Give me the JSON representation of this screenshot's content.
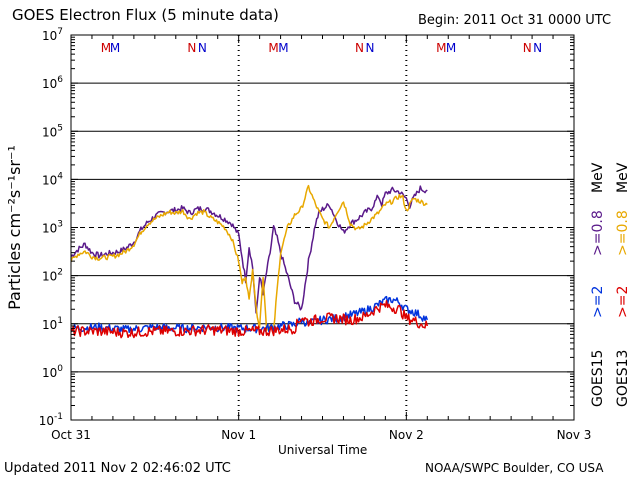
{
  "header": {
    "title": "GOES Electron Flux (5 minute data)",
    "begin": "Begin: 2011 Oct 31 0000 UTC"
  },
  "footer": {
    "updated": "Updated 2011 Nov  2 02:46:02 UTC",
    "credit": "NOAA/SWPC Boulder, CO USA"
  },
  "chart_data": {
    "type": "line",
    "title": "GOES Electron Flux (5 minute data)",
    "xlabel": "Universal Time",
    "ylabel": "Particles cm⁻²s⁻¹sr⁻¹",
    "y_scale": "log",
    "ylim": [
      0.1,
      10000000
    ],
    "y_ticks": [
      {
        "base": "10",
        "exp": "7"
      },
      {
        "base": "10",
        "exp": "6"
      },
      {
        "base": "10",
        "exp": "5"
      },
      {
        "base": "10",
        "exp": "4"
      },
      {
        "base": "10",
        "exp": "3"
      },
      {
        "base": "10",
        "exp": "2"
      },
      {
        "base": "10",
        "exp": "1"
      },
      {
        "base": "10",
        "exp": "0"
      },
      {
        "base": "10",
        "exp": "-1"
      }
    ],
    "xlim_hours": [
      0,
      72
    ],
    "x_ticks": [
      {
        "label": "Oct 31",
        "hour": 0
      },
      {
        "label": "Nov 1",
        "hour": 24
      },
      {
        "label": "Nov 2",
        "hour": 48
      },
      {
        "label": "Nov 3",
        "hour": 72
      }
    ],
    "threshold": 1000,
    "markers": [
      {
        "label": "M",
        "hour": 5.0,
        "color": "#cc0000"
      },
      {
        "label": "M",
        "hour": 6.3,
        "color": "#0000cc"
      },
      {
        "label": "N",
        "hour": 17.3,
        "color": "#cc0000"
      },
      {
        "label": "N",
        "hour": 18.8,
        "color": "#0000cc"
      },
      {
        "label": "M",
        "hour": 29.0,
        "color": "#cc0000"
      },
      {
        "label": "M",
        "hour": 30.4,
        "color": "#0000cc"
      },
      {
        "label": "N",
        "hour": 41.3,
        "color": "#cc0000"
      },
      {
        "label": "N",
        "hour": 42.8,
        "color": "#0000cc"
      },
      {
        "label": "M",
        "hour": 53.0,
        "color": "#cc0000"
      },
      {
        "label": "M",
        "hour": 54.4,
        "color": "#0000cc"
      },
      {
        "label": "N",
        "hour": 65.3,
        "color": "#cc0000"
      },
      {
        "label": "N",
        "hour": 66.8,
        "color": "#0000cc"
      }
    ],
    "legend": {
      "upper": [
        {
          "text": "GOES15 >=0.8 MeV",
          "color": "#5a1a8a"
        },
        {
          "text": "GOES13 >=0.8 MeV",
          "color": "#e8a800"
        }
      ],
      "lower": [
        {
          "text": "GOES15 >=2 MeV",
          "color": "#0033dd"
        },
        {
          "text": "GOES13 >=2 MeV",
          "color": "#dd0000"
        }
      ]
    },
    "series": [
      {
        "name": "GOES15 >=0.8 MeV",
        "color": "#5a1a8a",
        "noise": 0.06,
        "x": [
          0,
          1,
          2,
          3,
          4,
          5,
          6,
          7,
          8,
          9,
          10,
          11,
          12,
          13,
          14,
          15,
          16,
          17,
          18,
          19,
          20,
          21,
          22,
          23,
          24,
          25,
          25.5,
          26,
          26.5,
          27,
          27.5,
          28,
          28.5,
          29,
          29.5,
          30,
          31,
          32,
          33,
          34,
          35,
          35.5,
          36,
          37,
          38,
          39,
          40,
          41,
          42,
          43,
          44,
          44.5,
          45,
          46,
          47,
          48,
          48.5,
          49,
          50,
          50.5,
          51
        ],
        "y": [
          250,
          350,
          450,
          300,
          260,
          280,
          300,
          320,
          380,
          500,
          900,
          1300,
          1700,
          2000,
          2200,
          2300,
          2500,
          2000,
          2400,
          2500,
          2200,
          1800,
          1500,
          1200,
          700,
          80,
          400,
          150,
          15,
          100,
          40,
          120,
          300,
          1000,
          600,
          300,
          100,
          30,
          20,
          200,
          1200,
          2000,
          2400,
          3000,
          1400,
          800,
          1200,
          1500,
          2000,
          2500,
          4500,
          3000,
          5000,
          6000,
          5500,
          4000,
          2800,
          4000,
          6500,
          6000,
          6000
        ]
      },
      {
        "name": "GOES13 >=0.8 MeV",
        "color": "#e8a800",
        "noise": 0.05,
        "x": [
          0,
          1,
          2,
          3,
          4,
          5,
          6,
          7,
          8,
          9,
          10,
          11,
          12,
          13,
          14,
          15,
          16,
          17,
          18,
          19,
          20,
          21,
          22,
          23,
          24,
          24.5,
          25,
          25.5,
          26,
          26.5,
          27,
          27.5,
          28,
          28.5,
          29,
          29.5,
          30,
          31,
          32,
          33,
          34,
          35,
          36,
          37,
          38,
          39,
          40,
          41,
          42,
          43,
          44,
          45,
          46,
          47,
          47.5,
          48,
          49,
          50,
          51
        ],
        "y": [
          200,
          280,
          320,
          250,
          230,
          240,
          250,
          280,
          330,
          450,
          800,
          1200,
          1500,
          1800,
          2100,
          2000,
          2200,
          1500,
          2000,
          2100,
          1600,
          1300,
          1000,
          600,
          200,
          70,
          100,
          30,
          150,
          20,
          9,
          100,
          8,
          9,
          7,
          50,
          300,
          1000,
          1800,
          2500,
          7000,
          3000,
          1500,
          1000,
          2000,
          3500,
          1200,
          900,
          1100,
          1500,
          2000,
          3000,
          3500,
          4500,
          4200,
          2200,
          4000,
          3500,
          3000
        ]
      },
      {
        "name": "GOES15 >=2 MeV",
        "color": "#0033dd",
        "noise": 0.09,
        "x": [
          0,
          4,
          8,
          12,
          16,
          20,
          24,
          28,
          30,
          32,
          33,
          34,
          36,
          38,
          40,
          42,
          44,
          45,
          46,
          47,
          48,
          49,
          50,
          51
        ],
        "y": [
          8,
          8.5,
          7.5,
          8.5,
          8,
          8.5,
          8,
          8,
          9,
          9.5,
          12,
          10,
          12,
          13,
          15,
          18,
          25,
          30,
          32,
          28,
          20,
          18,
          15,
          12
        ]
      },
      {
        "name": "GOES13 >=2 MeV",
        "color": "#dd0000",
        "noise": 0.11,
        "x": [
          0,
          4,
          8,
          12,
          16,
          20,
          24,
          28,
          30,
          32,
          33,
          34,
          36,
          38,
          40,
          42,
          44,
          45,
          46,
          47,
          48,
          49,
          50,
          51
        ],
        "y": [
          7,
          7,
          6.5,
          7,
          7,
          7.5,
          7,
          7,
          7.5,
          8,
          14,
          11,
          13,
          13,
          12,
          14,
          22,
          24,
          22,
          20,
          13,
          12,
          10,
          9
        ]
      }
    ]
  }
}
